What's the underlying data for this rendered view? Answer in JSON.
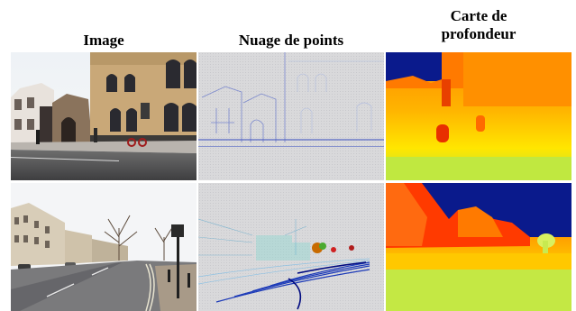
{
  "headers": {
    "image": "Image",
    "point_cloud": "Nuage de points",
    "depth_map_line1": "Carte de",
    "depth_map_line2": "profondeur"
  },
  "rows": [
    {
      "scene": "street with stone buildings"
    },
    {
      "scene": "road with lamp post and trees"
    }
  ],
  "colors": {
    "depth_far": "#0a1a8c",
    "depth_mid": "#ff7a00",
    "depth_near": "#cfe830",
    "pointcloud_bg": "#d6d6d8"
  }
}
